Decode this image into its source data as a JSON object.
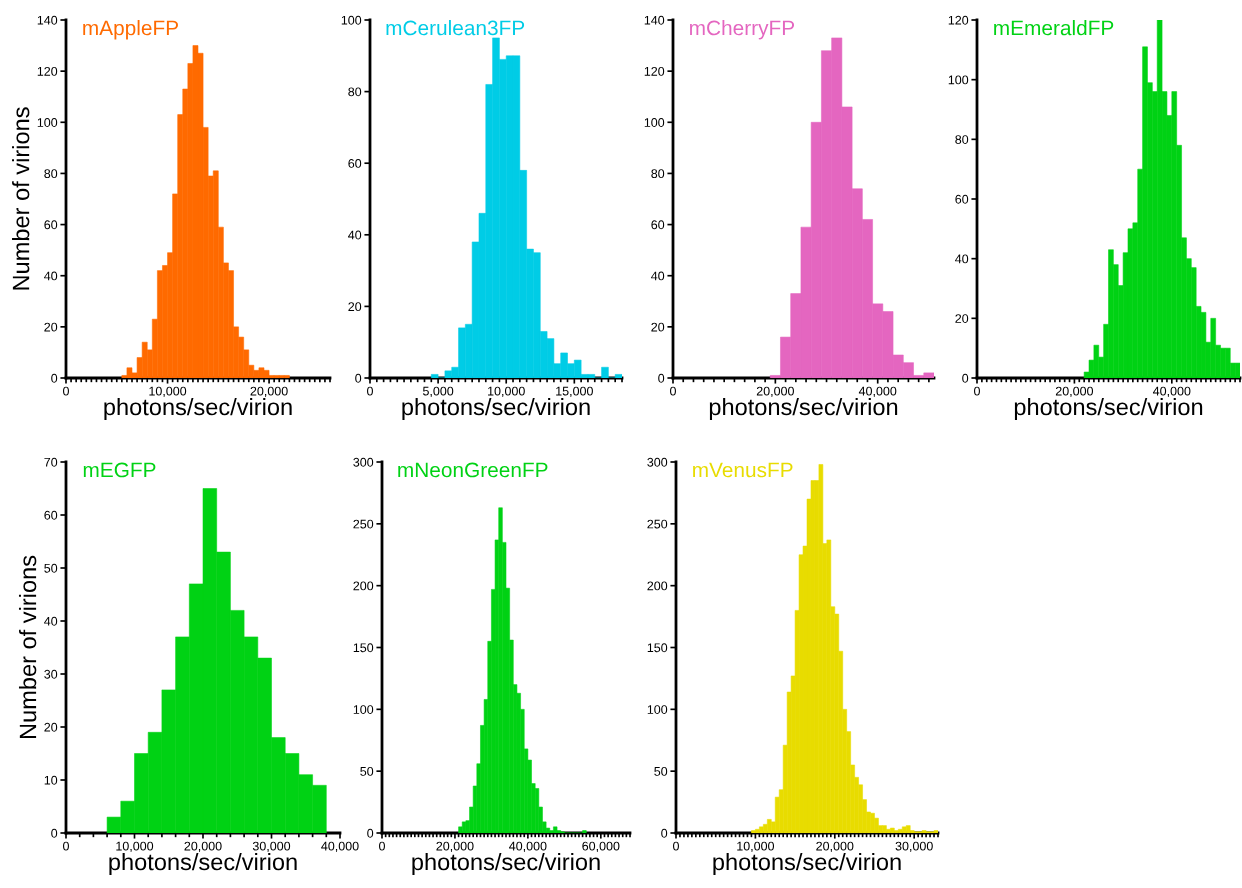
{
  "chart_data": [
    {
      "type": "histogram",
      "title": "mAppleFP",
      "color": "#ff6a00",
      "xlabel": "photons/sec/virion",
      "ylabel": "Number of virions",
      "bins": [
        5500,
        6000,
        6500,
        7000,
        7500,
        8000,
        8500,
        9000,
        9500,
        10000,
        10500,
        11000,
        11500,
        12000,
        12500,
        13000,
        13500,
        14000,
        14500,
        15000,
        15500,
        16000,
        16500,
        17000,
        17500,
        18000,
        18500,
        19000,
        19500,
        20000,
        20500,
        21000,
        21500,
        22000
      ],
      "values": [
        1,
        4,
        2,
        8,
        14,
        11,
        23,
        42,
        44,
        49,
        72,
        103,
        113,
        123,
        130,
        127,
        98,
        79,
        81,
        59,
        45,
        42,
        20,
        16,
        11,
        5,
        3,
        4,
        3,
        1,
        1,
        1,
        1
      ],
      "xlim": [
        0,
        26000
      ],
      "xticks": [
        0,
        {
          "value": 10000,
          "label": "10,000"
        },
        {
          "value": 20000,
          "label": "20,000"
        }
      ],
      "ylim": [
        0,
        140
      ],
      "yticks": [
        0,
        20,
        40,
        60,
        80,
        100,
        120,
        140
      ]
    },
    {
      "type": "histogram",
      "title": "mCerulean3FP",
      "color": "#00cce6",
      "xlabel": "photons/sec/virion",
      "bins": [
        4500,
        5000,
        5500,
        6000,
        6500,
        7000,
        7500,
        8000,
        8500,
        9000,
        9500,
        10000,
        10500,
        11000,
        11500,
        12000,
        12500,
        13000,
        13500,
        14000,
        14500,
        15000,
        15500,
        16000,
        16500,
        17000,
        17500,
        18000,
        18500
      ],
      "values": [
        1,
        0,
        2,
        3,
        14,
        15,
        38,
        46,
        82,
        95,
        89,
        90,
        90,
        58,
        36,
        35,
        13,
        11,
        4,
        7,
        4,
        5,
        1,
        1,
        0,
        3,
        0,
        1
      ],
      "xlim": [
        0,
        18500
      ],
      "xticks": [
        0,
        {
          "value": 5000,
          "label": "5,000"
        },
        {
          "value": 10000,
          "label": "10,000"
        },
        {
          "value": 15000,
          "label": "15,000"
        }
      ],
      "ylim": [
        0,
        100
      ],
      "yticks": [
        0,
        20,
        40,
        60,
        80,
        100
      ]
    },
    {
      "type": "histogram",
      "title": "mCherryFP",
      "color": "#e466c0",
      "xlabel": "photons/sec/virion",
      "bins": [
        19000,
        21000,
        23000,
        25000,
        27000,
        29000,
        31000,
        33000,
        35000,
        37000,
        39000,
        41000,
        43000,
        45000,
        47000,
        49000,
        51000
      ],
      "values": [
        1,
        16,
        33,
        59,
        100,
        128,
        133,
        106,
        74,
        62,
        29,
        26,
        9,
        6,
        1,
        2
      ],
      "xlim": [
        0,
        51000
      ],
      "xticks": [
        0,
        {
          "value": 20000,
          "label": "20,000"
        },
        {
          "value": 40000,
          "label": "40,000"
        }
      ],
      "ylim": [
        0,
        140
      ],
      "yticks": [
        0,
        20,
        40,
        60,
        80,
        100,
        120,
        140
      ]
    },
    {
      "type": "histogram",
      "title": "mEmeraldFP",
      "color": "#00d214",
      "xlabel": "photons/sec/virion",
      "bins": [
        22000,
        23000,
        24000,
        25000,
        26000,
        27000,
        28000,
        29000,
        30000,
        31000,
        32000,
        33000,
        34000,
        35000,
        36000,
        37000,
        38000,
        39000,
        40000,
        41000,
        42000,
        43000,
        44000,
        45000,
        46000,
        47000,
        48000,
        49000,
        50000,
        51000,
        52000,
        53000,
        54000
      ],
      "values": [
        2,
        6,
        11,
        7,
        18,
        43,
        38,
        31,
        42,
        50,
        52,
        70,
        111,
        99,
        96,
        120,
        96,
        88,
        96,
        78,
        47,
        40,
        37,
        24,
        22,
        12,
        20,
        11,
        10,
        10,
        5,
        5
      ],
      "xlim": [
        0,
        54000
      ],
      "xticks": [
        0,
        {
          "value": 20000,
          "label": "20,000"
        },
        {
          "value": 40000,
          "label": "40,000"
        }
      ],
      "ylim": [
        0,
        120
      ],
      "yticks": [
        0,
        20,
        40,
        60,
        80,
        100,
        120
      ]
    },
    {
      "type": "histogram",
      "title": "mEGFP",
      "color": "#00d214",
      "xlabel": "photons/sec/virion",
      "ylabel": "Number of virions",
      "bins": [
        6000,
        8000,
        10000,
        12000,
        14000,
        16000,
        18000,
        20000,
        22000,
        24000,
        26000,
        28000,
        30000,
        32000,
        34000,
        36000,
        38000
      ],
      "values": [
        3,
        6,
        15,
        19,
        27,
        37,
        47,
        65,
        53,
        42,
        37,
        33,
        18,
        15,
        11,
        9
      ],
      "xlim": [
        0,
        40000
      ],
      "xticks": [
        0,
        {
          "value": 10000,
          "label": "10,000"
        },
        {
          "value": 20000,
          "label": "20,000"
        },
        {
          "value": 30000,
          "label": "30,000"
        },
        {
          "value": 40000,
          "label": "40,000"
        }
      ],
      "ylim": [
        0,
        70
      ],
      "yticks": [
        0,
        10,
        20,
        30,
        40,
        50,
        60,
        70
      ]
    },
    {
      "type": "histogram",
      "title": "mNeonGreenFP",
      "color": "#00d214",
      "xlabel": "photons/sec/virion",
      "bins": [
        21000,
        22000,
        23000,
        24000,
        25000,
        26000,
        27000,
        28000,
        29000,
        30000,
        31000,
        32000,
        33000,
        34000,
        35000,
        36000,
        37000,
        38000,
        39000,
        40000,
        41000,
        42000,
        43000,
        44000,
        45000,
        46000,
        47000,
        48000,
        49000,
        50000,
        51000,
        52000,
        53000,
        54000,
        55000,
        56000
      ],
      "values": [
        5,
        9,
        10,
        21,
        38,
        56,
        87,
        108,
        155,
        197,
        237,
        263,
        235,
        198,
        156,
        120,
        113,
        100,
        68,
        59,
        40,
        36,
        21,
        9,
        4,
        2,
        5,
        2,
        1,
        0,
        0,
        0,
        0,
        0,
        2
      ],
      "xlim": [
        0,
        68000
      ],
      "xticks": [
        0,
        {
          "value": 20000,
          "label": "20,000"
        },
        {
          "value": 40000,
          "label": "40,000"
        },
        {
          "value": 60000,
          "label": "60,000"
        }
      ],
      "ylim": [
        0,
        300
      ],
      "yticks": [
        0,
        50,
        100,
        150,
        200,
        250,
        300
      ]
    },
    {
      "type": "histogram",
      "title": "mVenusFP",
      "color": "#e8dc00",
      "xlabel": "photons/sec/virion",
      "bins": [
        9500,
        10000,
        10500,
        11000,
        11500,
        12000,
        12500,
        13000,
        13500,
        14000,
        14500,
        15000,
        15500,
        16000,
        16500,
        17000,
        17500,
        18000,
        18500,
        19000,
        19500,
        20000,
        20500,
        21000,
        21500,
        22000,
        22500,
        23000,
        23500,
        24000,
        24500,
        25000,
        25500,
        26000,
        26500,
        27000,
        27500,
        28000,
        28500,
        29000,
        29500,
        30000,
        30500,
        31000,
        31500,
        32000,
        32500,
        33000
      ],
      "values": [
        2,
        3,
        5,
        7,
        11,
        9,
        29,
        35,
        71,
        114,
        127,
        180,
        225,
        232,
        270,
        285,
        285,
        298,
        234,
        237,
        183,
        177,
        147,
        100,
        82,
        55,
        45,
        39,
        27,
        17,
        16,
        12,
        6,
        6,
        3,
        4,
        2,
        3,
        5,
        6,
        2,
        1,
        1,
        2,
        1,
        1,
        2
      ],
      "xlim": [
        0,
        33000
      ],
      "xticks": [
        0,
        {
          "value": 10000,
          "label": "10,000"
        },
        {
          "value": 20000,
          "label": "20,000"
        },
        {
          "value": 30000,
          "label": "30,000"
        }
      ],
      "ylim": [
        0,
        300
      ],
      "yticks": [
        0,
        50,
        100,
        150,
        200,
        250,
        300
      ]
    }
  ]
}
